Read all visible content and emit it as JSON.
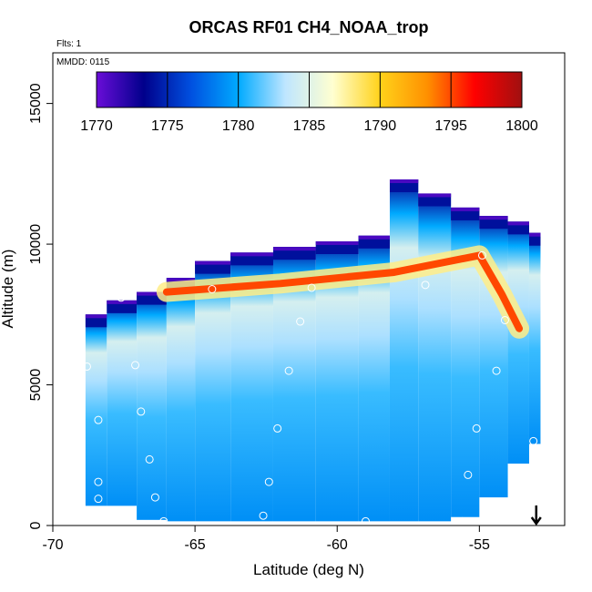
{
  "chart_data": {
    "type": "heatmap",
    "title": "ORCAS RF01 CH4_NOAA_trop",
    "flights_label": "Flts: 1",
    "date_label": "MMDD: 0115",
    "xlabel": "Latitude (deg N)",
    "ylabel": "Altitude (m)",
    "xlim": [
      -70,
      -52
    ],
    "ylim": [
      0,
      16800
    ],
    "x_ticks": [
      -70,
      -65,
      -60,
      -55
    ],
    "x_tick_labels": [
      "-70",
      "-65",
      "-60",
      "-55"
    ],
    "y_ticks": [
      0,
      5000,
      10000,
      15000
    ],
    "y_tick_labels": [
      "0",
      "5000",
      "10000",
      "15000"
    ],
    "colorbar": {
      "min": 1770,
      "max": 1800,
      "ticks": [
        1770,
        1775,
        1780,
        1785,
        1790,
        1795,
        1800
      ],
      "tick_labels": [
        "1770",
        "1775",
        "1780",
        "1785",
        "1790",
        "1795",
        "1800"
      ],
      "colors": [
        "#6a0dd8",
        "#00008b",
        "#0050e0",
        "#00aaff",
        "#bfe6ff",
        "#ffffd0",
        "#ffd21a",
        "#ff9000",
        "#ff0000",
        "#a01010"
      ]
    },
    "heatmap_columns": [
      {
        "lat": -68.6,
        "bottom": 700,
        "top": 7500
      },
      {
        "lat": -67.6,
        "bottom": 700,
        "top": 8000
      },
      {
        "lat": -66.5,
        "bottom": 200,
        "top": 8300
      },
      {
        "lat": -65.5,
        "bottom": 150,
        "top": 8800
      },
      {
        "lat": -64.5,
        "bottom": 150,
        "top": 9400
      },
      {
        "lat": -63.0,
        "bottom": 150,
        "top": 9700
      },
      {
        "lat": -61.5,
        "bottom": 150,
        "top": 9900
      },
      {
        "lat": -60.0,
        "bottom": 150,
        "top": 10100
      },
      {
        "lat": -58.5,
        "bottom": 150,
        "top": 10300
      },
      {
        "lat": -57.8,
        "bottom": 150,
        "top": 12300
      },
      {
        "lat": -56.5,
        "bottom": 150,
        "top": 11800
      },
      {
        "lat": -55.5,
        "bottom": 300,
        "top": 11300
      },
      {
        "lat": -54.5,
        "bottom": 1000,
        "top": 11000
      },
      {
        "lat": -53.5,
        "bottom": 2200,
        "top": 10800
      },
      {
        "lat": -53.0,
        "bottom": 2900,
        "top": 10400
      }
    ],
    "plume": {
      "description": "",
      "path": [
        {
          "lat": -66.0,
          "alt": 8300
        },
        {
          "lat": -62.0,
          "alt": 8600
        },
        {
          "lat": -58.0,
          "alt": 9000
        },
        {
          "lat": -55.0,
          "alt": 9600
        },
        {
          "lat": -54.2,
          "alt": 8200
        },
        {
          "lat": -53.6,
          "alt": 7000
        }
      ],
      "value": 1795
    },
    "flight_points": [
      {
        "lat": -68.8,
        "alt": 5650
      },
      {
        "lat": -68.4,
        "alt": 3750
      },
      {
        "lat": -68.4,
        "alt": 1550
      },
      {
        "lat": -68.4,
        "alt": 950
      },
      {
        "lat": -67.6,
        "alt": 8100
      },
      {
        "lat": -67.1,
        "alt": 5700
      },
      {
        "lat": -66.9,
        "alt": 4050
      },
      {
        "lat": -66.6,
        "alt": 2350
      },
      {
        "lat": -66.4,
        "alt": 1000
      },
      {
        "lat": -66.1,
        "alt": 150
      },
      {
        "lat": -64.4,
        "alt": 8400
      },
      {
        "lat": -62.6,
        "alt": 350
      },
      {
        "lat": -62.4,
        "alt": 1550
      },
      {
        "lat": -62.1,
        "alt": 3450
      },
      {
        "lat": -61.7,
        "alt": 5500
      },
      {
        "lat": -61.3,
        "alt": 7250
      },
      {
        "lat": -60.9,
        "alt": 8450
      },
      {
        "lat": -59.0,
        "alt": 150
      },
      {
        "lat": -56.9,
        "alt": 8550
      },
      {
        "lat": -55.6,
        "alt": 150
      },
      {
        "lat": -55.4,
        "alt": 1800
      },
      {
        "lat": -55.1,
        "alt": 3450
      },
      {
        "lat": -54.9,
        "alt": 9600
      },
      {
        "lat": -54.4,
        "alt": 5500
      },
      {
        "lat": -54.1,
        "alt": 7300
      },
      {
        "lat": -53.1,
        "alt": 3000
      }
    ],
    "arrow": {
      "lat": -53.0,
      "direction": "down"
    }
  }
}
